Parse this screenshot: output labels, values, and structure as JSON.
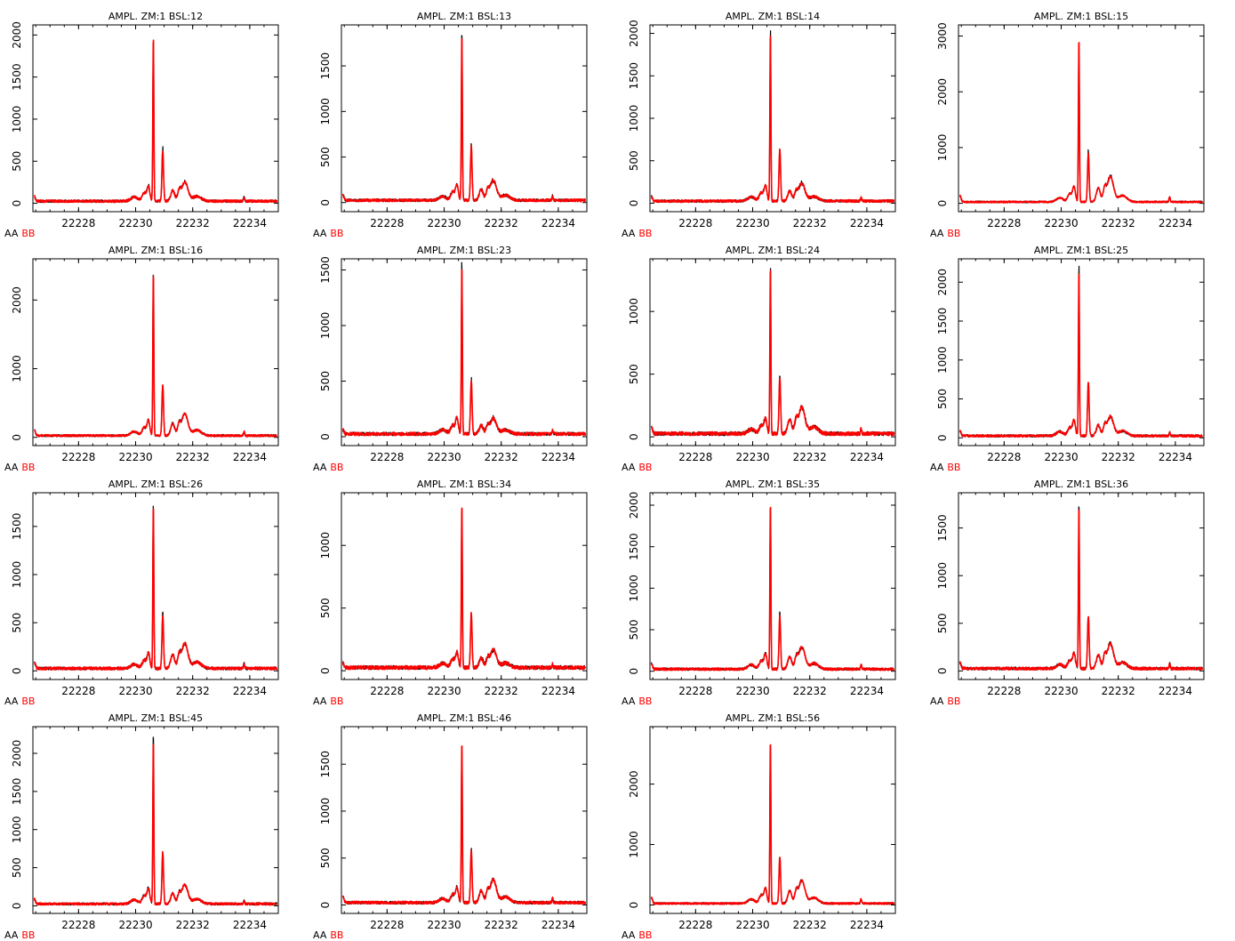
{
  "legend": [
    {
      "label": "AA",
      "color": "#000000"
    },
    {
      "label": "BB",
      "color": "#ff0000"
    }
  ],
  "chart_data": [
    {
      "type": "line",
      "title": "AMPL. ZM:1 BSL:12",
      "xlim": [
        22226.4,
        22235.0
      ],
      "ylim": [
        -100,
        2120
      ],
      "xticks": [
        22228,
        22230,
        22232,
        22234
      ],
      "yticks": [
        0,
        500,
        1000,
        1500,
        2000
      ],
      "peaks": {
        "main": 1960,
        "second": 610,
        "third": 230
      },
      "series": [
        {
          "name": "AA",
          "color": "#000000"
        },
        {
          "name": "BB",
          "color": "#ff0000"
        }
      ]
    },
    {
      "type": "line",
      "title": "AMPL. ZM:1 BSL:13",
      "xlim": [
        22226.4,
        22235.0
      ],
      "ylim": [
        -100,
        1950
      ],
      "xticks": [
        22228,
        22230,
        22232,
        22234
      ],
      "yticks": [
        0,
        500,
        1000,
        1500
      ],
      "peaks": {
        "main": 1830,
        "second": 600,
        "third": 220
      },
      "series": [
        {
          "name": "AA",
          "color": "#000000"
        },
        {
          "name": "BB",
          "color": "#ff0000"
        }
      ]
    },
    {
      "type": "line",
      "title": "AMPL. ZM:1 BSL:14",
      "xlim": [
        22226.4,
        22235.0
      ],
      "ylim": [
        -100,
        2100
      ],
      "xticks": [
        22228,
        22230,
        22232,
        22234
      ],
      "yticks": [
        0,
        500,
        1000,
        1500,
        2000
      ],
      "peaks": {
        "main": 1990,
        "second": 620,
        "third": 210
      },
      "series": [
        {
          "name": "AA",
          "color": "#000000"
        },
        {
          "name": "BB",
          "color": "#ff0000"
        }
      ]
    },
    {
      "type": "line",
      "title": "AMPL. ZM:1 BSL:15",
      "xlim": [
        22226.4,
        22235.0
      ],
      "ylim": [
        -150,
        3200
      ],
      "xticks": [
        22228,
        22230,
        22232,
        22234
      ],
      "yticks": [
        0,
        1000,
        2000,
        3000
      ],
      "peaks": {
        "main": 2950,
        "second": 880,
        "third": 460
      },
      "series": [
        {
          "name": "AA",
          "color": "#000000"
        },
        {
          "name": "BB",
          "color": "#ff0000"
        }
      ]
    },
    {
      "type": "line",
      "title": "AMPL. ZM:1 BSL:16",
      "xlim": [
        22226.4,
        22235.0
      ],
      "ylim": [
        -120,
        2600
      ],
      "xticks": [
        22228,
        22230,
        22232,
        22234
      ],
      "yticks": [
        0,
        1000,
        2000
      ],
      "peaks": {
        "main": 2380,
        "second": 740,
        "third": 320
      },
      "series": [
        {
          "name": "AA",
          "color": "#000000"
        },
        {
          "name": "BB",
          "color": "#ff0000"
        }
      ]
    },
    {
      "type": "line",
      "title": "AMPL. ZM:1 BSL:23",
      "xlim": [
        22226.4,
        22235.0
      ],
      "ylim": [
        -80,
        1600
      ],
      "xticks": [
        22228,
        22230,
        22232,
        22234
      ],
      "yticks": [
        0,
        500,
        1000,
        1500
      ],
      "peaks": {
        "main": 1520,
        "second": 480,
        "third": 140
      },
      "series": [
        {
          "name": "AA",
          "color": "#000000"
        },
        {
          "name": "BB",
          "color": "#ff0000"
        }
      ]
    },
    {
      "type": "line",
      "title": "AMPL. ZM:1 BSL:24",
      "xlim": [
        22226.4,
        22235.0
      ],
      "ylim": [
        -70,
        1420
      ],
      "xticks": [
        22228,
        22230,
        22232,
        22234
      ],
      "yticks": [
        0,
        500,
        1000
      ],
      "peaks": {
        "main": 1330,
        "second": 460,
        "third": 210
      },
      "series": [
        {
          "name": "AA",
          "color": "#000000"
        },
        {
          "name": "BB",
          "color": "#ff0000"
        }
      ]
    },
    {
      "type": "line",
      "title": "AMPL. ZM:1 BSL:25",
      "xlim": [
        22226.4,
        22235.0
      ],
      "ylim": [
        -100,
        2300
      ],
      "xticks": [
        22228,
        22230,
        22232,
        22234
      ],
      "yticks": [
        0,
        500,
        1000,
        1500,
        2000
      ],
      "peaks": {
        "main": 2150,
        "second": 690,
        "third": 250
      },
      "series": [
        {
          "name": "AA",
          "color": "#000000"
        },
        {
          "name": "BB",
          "color": "#ff0000"
        }
      ]
    },
    {
      "type": "line",
      "title": "AMPL. ZM:1 BSL:26",
      "xlim": [
        22226.4,
        22235.0
      ],
      "ylim": [
        -90,
        1850
      ],
      "xticks": [
        22228,
        22230,
        22232,
        22234
      ],
      "yticks": [
        0,
        500,
        1000,
        1500
      ],
      "peaks": {
        "main": 1700,
        "second": 560,
        "third": 260
      },
      "series": [
        {
          "name": "AA",
          "color": "#000000"
        },
        {
          "name": "BB",
          "color": "#ff0000"
        }
      ]
    },
    {
      "type": "line",
      "title": "AMPL. ZM:1 BSL:34",
      "xlim": [
        22226.4,
        22235.0
      ],
      "ylim": [
        -70,
        1420
      ],
      "xticks": [
        22228,
        22230,
        22232,
        22234
      ],
      "yticks": [
        0,
        500,
        1000
      ],
      "peaks": {
        "main": 1320,
        "second": 430,
        "third": 140
      },
      "series": [
        {
          "name": "AA",
          "color": "#000000"
        },
        {
          "name": "BB",
          "color": "#ff0000"
        }
      ]
    },
    {
      "type": "line",
      "title": "AMPL. ZM:1 BSL:35",
      "xlim": [
        22226.4,
        22235.0
      ],
      "ylim": [
        -100,
        2150
      ],
      "xticks": [
        22228,
        22230,
        22232,
        22234
      ],
      "yticks": [
        0,
        500,
        1000,
        1500,
        2000
      ],
      "peaks": {
        "main": 2000,
        "second": 650,
        "third": 270
      },
      "series": [
        {
          "name": "AA",
          "color": "#000000"
        },
        {
          "name": "BB",
          "color": "#ff0000"
        }
      ]
    },
    {
      "type": "line",
      "title": "AMPL. ZM:1 BSL:36",
      "xlim": [
        22226.4,
        22235.0
      ],
      "ylim": [
        -90,
        1870
      ],
      "xticks": [
        22228,
        22230,
        22232,
        22234
      ],
      "yticks": [
        0,
        500,
        1000,
        1500
      ],
      "peaks": {
        "main": 1720,
        "second": 550,
        "third": 260
      },
      "series": [
        {
          "name": "AA",
          "color": "#000000"
        },
        {
          "name": "BB",
          "color": "#ff0000"
        }
      ]
    },
    {
      "type": "line",
      "title": "AMPL. ZM:1 BSL:45",
      "xlim": [
        22226.4,
        22235.0
      ],
      "ylim": [
        -100,
        2350
      ],
      "xticks": [
        22228,
        22230,
        22232,
        22234
      ],
      "yticks": [
        0,
        500,
        1000,
        1500,
        2000
      ],
      "peaks": {
        "main": 2150,
        "second": 680,
        "third": 250
      },
      "series": [
        {
          "name": "AA",
          "color": "#000000"
        },
        {
          "name": "BB",
          "color": "#ff0000"
        }
      ]
    },
    {
      "type": "line",
      "title": "AMPL. ZM:1 BSL:46",
      "xlim": [
        22226.4,
        22235.0
      ],
      "ylim": [
        -90,
        1900
      ],
      "xticks": [
        22228,
        22230,
        22232,
        22234
      ],
      "yticks": [
        0,
        500,
        1000,
        1500
      ],
      "peaks": {
        "main": 1730,
        "second": 560,
        "third": 240
      },
      "series": [
        {
          "name": "AA",
          "color": "#000000"
        },
        {
          "name": "BB",
          "color": "#ff0000"
        }
      ]
    },
    {
      "type": "line",
      "title": "AMPL. ZM:1 BSL:56",
      "xlim": [
        22226.4,
        22235.0
      ],
      "ylim": [
        -140,
        2950
      ],
      "xticks": [
        22228,
        22230,
        22232,
        22234
      ],
      "yticks": [
        0,
        1000,
        2000
      ],
      "peaks": {
        "main": 2700,
        "second": 780,
        "third": 380
      },
      "series": [
        {
          "name": "AA",
          "color": "#000000"
        },
        {
          "name": "BB",
          "color": "#ff0000"
        }
      ]
    }
  ]
}
